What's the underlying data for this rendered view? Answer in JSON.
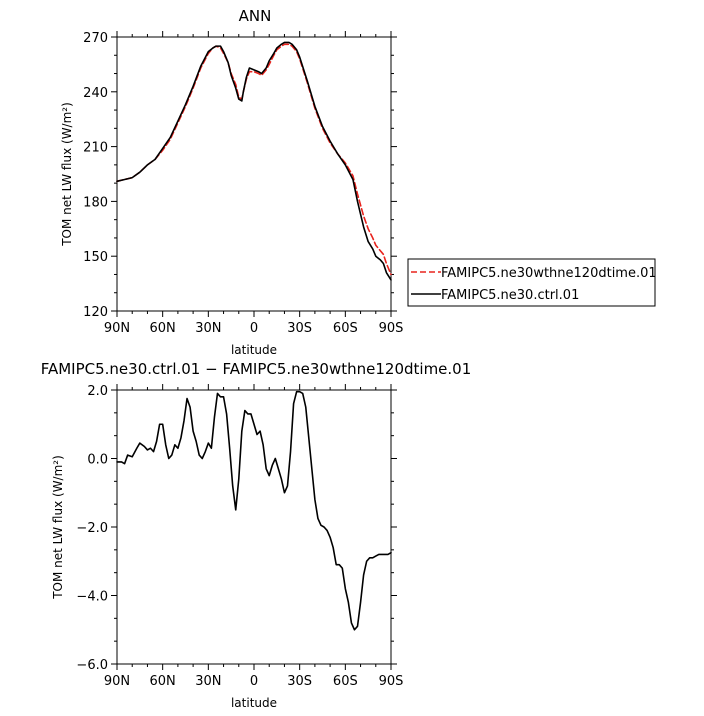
{
  "chart_data": [
    {
      "type": "line",
      "title": "ANN",
      "xlabel": "latitude",
      "ylabel": "TOM net LW flux (W/m²)",
      "x_ticks": [
        "90N",
        "60N",
        "30N",
        "0",
        "30S",
        "60S",
        "90S"
      ],
      "x_tick_values": [
        90,
        60,
        30,
        0,
        -30,
        -60,
        -90
      ],
      "y_ticks": [
        "120",
        "150",
        "180",
        "210",
        "240",
        "270"
      ],
      "xlim": [
        90,
        -90
      ],
      "ylim": [
        120,
        270
      ],
      "legend": "right",
      "x": [
        90,
        85,
        80,
        75,
        70,
        65,
        60,
        55,
        50,
        45,
        40,
        35,
        30,
        27,
        25,
        22,
        20,
        17,
        15,
        12,
        10,
        8,
        7,
        5,
        3,
        0,
        -3,
        -5,
        -8,
        -10,
        -13,
        -15,
        -18,
        -20,
        -23,
        -25,
        -28,
        -30,
        -35,
        -40,
        -45,
        -50,
        -55,
        -60,
        -65,
        -68,
        -70,
        -72,
        -75,
        -78,
        -80,
        -83,
        -85,
        -87,
        -90
      ],
      "series": [
        {
          "name": "FAMIPC5.ne30wthne120dtime.01",
          "color": "#e8231d",
          "dash": "dashed",
          "values": [
            191,
            192,
            193,
            196,
            200,
            203,
            208,
            214,
            223,
            232,
            242,
            253,
            261,
            264,
            265,
            264,
            261,
            256,
            250,
            244,
            237,
            236,
            240,
            247,
            251,
            251,
            250,
            249,
            252,
            255,
            260,
            263,
            265,
            266,
            266,
            265,
            262,
            258,
            245,
            231,
            220,
            212,
            206,
            201,
            194,
            184,
            178,
            172,
            165,
            160,
            156,
            153,
            151,
            146,
            140
          ]
        },
        {
          "name": "FAMIPC5.ne30.ctrl.01",
          "color": "#000000",
          "dash": "solid",
          "values": [
            191,
            192,
            193,
            196,
            200,
            203,
            209,
            215,
            224,
            233,
            243,
            254,
            262,
            264,
            265,
            265,
            262,
            256,
            249,
            242,
            236,
            235,
            240,
            248,
            253,
            252,
            251,
            250,
            253,
            257,
            261,
            264,
            266,
            267,
            267,
            266,
            263,
            259,
            246,
            232,
            221,
            213,
            206,
            200,
            192,
            180,
            173,
            166,
            158,
            154,
            150,
            148,
            146,
            141,
            137
          ]
        }
      ]
    },
    {
      "type": "line",
      "title": "FAMIPC5.ne30.ctrl.01 − FAMIPC5.ne30wthne120dtime.01",
      "xlabel": "latitude",
      "ylabel": "TOM net LW flux (W/m²)",
      "x_ticks": [
        "90N",
        "60N",
        "30N",
        "0",
        "30S",
        "60S",
        "90S"
      ],
      "x_tick_values": [
        90,
        60,
        30,
        0,
        -30,
        -60,
        -90
      ],
      "y_ticks": [
        "−6.0",
        "−4.0",
        "−2.0",
        "0.0",
        "2.0"
      ],
      "xlim": [
        90,
        -90
      ],
      "ylim": [
        -6,
        2
      ],
      "x": [
        90,
        87,
        85,
        83,
        80,
        77,
        75,
        72,
        70,
        68,
        66,
        64,
        62,
        60,
        58,
        56,
        54,
        52,
        50,
        48,
        46,
        44,
        42,
        40,
        38,
        36,
        34,
        32,
        30,
        28,
        26,
        24,
        22,
        20,
        18,
        16,
        14,
        12,
        10,
        8,
        6,
        4,
        2,
        0,
        -2,
        -4,
        -6,
        -8,
        -10,
        -12,
        -14,
        -16,
        -18,
        -20,
        -22,
        -24,
        -26,
        -28,
        -30,
        -32,
        -34,
        -36,
        -38,
        -40,
        -42,
        -44,
        -46,
        -48,
        -50,
        -52,
        -54,
        -56,
        -58,
        -60,
        -62,
        -64,
        -66,
        -68,
        -70,
        -72,
        -74,
        -76,
        -78,
        -80,
        -82,
        -84,
        -86,
        -88,
        -90
      ],
      "series": [
        {
          "name": "",
          "color": "#000000",
          "dash": "solid",
          "values": [
            -0.1,
            -0.1,
            -0.15,
            0.1,
            0.05,
            0.3,
            0.45,
            0.35,
            0.25,
            0.3,
            0.2,
            0.5,
            1.0,
            1.0,
            0.4,
            0.0,
            0.1,
            0.4,
            0.3,
            0.6,
            1.1,
            1.75,
            1.5,
            0.8,
            0.5,
            0.1,
            0.0,
            0.2,
            0.45,
            0.3,
            1.2,
            1.9,
            1.8,
            1.8,
            1.3,
            0.3,
            -0.8,
            -1.5,
            -0.6,
            0.8,
            1.4,
            1.3,
            1.3,
            1.0,
            0.7,
            0.8,
            0.4,
            -0.3,
            -0.5,
            -0.2,
            0.0,
            -0.3,
            -0.6,
            -1.0,
            -0.8,
            0.2,
            1.6,
            1.95,
            1.95,
            1.9,
            1.5,
            0.6,
            -0.3,
            -1.2,
            -1.75,
            -1.95,
            -2.0,
            -2.1,
            -2.3,
            -2.6,
            -3.1,
            -3.1,
            -3.2,
            -3.8,
            -4.2,
            -4.8,
            -5.0,
            -4.9,
            -4.2,
            -3.4,
            -3.0,
            -2.9,
            -2.9,
            -2.85,
            -2.8,
            -2.8,
            -2.8,
            -2.8,
            -2.75
          ]
        }
      ]
    }
  ]
}
